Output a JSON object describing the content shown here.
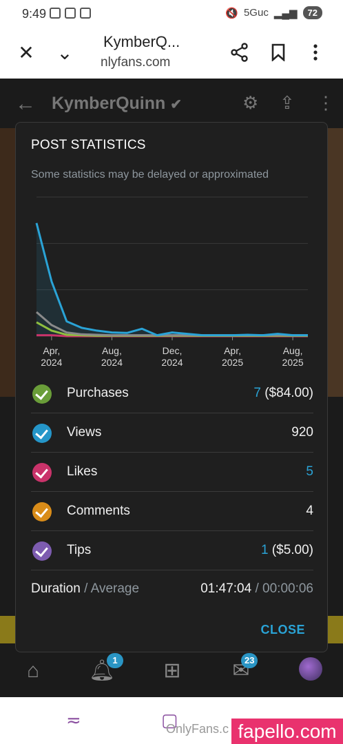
{
  "status_bar": {
    "time": "9:49",
    "network": "5Guc",
    "battery": "72"
  },
  "browser": {
    "title": "KymberQ...",
    "url": "nlyfans.com"
  },
  "profile": {
    "name": "KymberQuinn"
  },
  "dialog": {
    "title": "POST STATISTICS",
    "subtitle": "Some statistics may be delayed or approximated",
    "stats": [
      {
        "label": "Purchases",
        "count": "7",
        "amount": "($84.00)",
        "color": "#6a9d39"
      },
      {
        "label": "Views",
        "count": "",
        "amount": "920",
        "color": "#2596c9"
      },
      {
        "label": "Likes",
        "count": "5",
        "amount": "",
        "color": "#c9336a"
      },
      {
        "label": "Comments",
        "count": "",
        "amount": "4",
        "color": "#d98c19"
      },
      {
        "label": "Tips",
        "count": "1",
        "amount": "($5.00)",
        "color": "#7d5cb0"
      }
    ],
    "duration": {
      "label": "Duration",
      "sep": "/",
      "avg_label": "Average",
      "total": "01:47:04",
      "avg_sep": "/",
      "average": "00:00:06"
    },
    "close_label": "CLOSE"
  },
  "chart_data": {
    "type": "line",
    "x": [
      "2024-03-01",
      "2024-04-01",
      "2024-05-01",
      "2024-06-01",
      "2024-07-01",
      "2024-08-01",
      "2024-09-01",
      "2024-10-01",
      "2024-11-01",
      "2024-12-01",
      "2025-01-01",
      "2025-02-01",
      "2025-03-01",
      "2025-04-01",
      "2025-05-01",
      "2025-06-01",
      "2025-07-01",
      "2025-08-01",
      "2025-09-01"
    ],
    "tick_labels": [
      "Apr,\n2024",
      "Aug,\n2024",
      "Dec,\n2024",
      "Apr,\n2025",
      "Aug,\n2025"
    ],
    "ylim": [
      0,
      300
    ],
    "grid": true,
    "series": [
      {
        "color": "#2aa3d6",
        "values": [
          244,
          118,
          32,
          18,
          12,
          8,
          7,
          16,
          2,
          8,
          5,
          2,
          2,
          2,
          3,
          2,
          5,
          2,
          2
        ]
      },
      {
        "color": "#8a8a8a",
        "values": [
          52,
          24,
          8,
          4,
          3,
          2,
          2,
          2,
          2,
          2,
          2,
          2,
          2,
          2,
          2,
          2,
          2,
          2,
          2
        ]
      },
      {
        "color": "#8fbf3f",
        "values": [
          30,
          12,
          3,
          2,
          1,
          1,
          1,
          1,
          1,
          1,
          1,
          1,
          1,
          1,
          1,
          1,
          1,
          1,
          1
        ]
      },
      {
        "color": "#c9336a",
        "values": [
          2,
          2,
          0,
          0,
          0,
          0,
          0,
          0,
          0,
          0,
          0,
          0,
          0,
          0,
          0,
          0,
          0,
          0,
          0
        ]
      }
    ]
  },
  "nav": {
    "notifications_badge": "1",
    "messages_badge": "23"
  },
  "system_nav": {
    "label": "OnlyFans.c"
  },
  "watermark": "fapello.com"
}
